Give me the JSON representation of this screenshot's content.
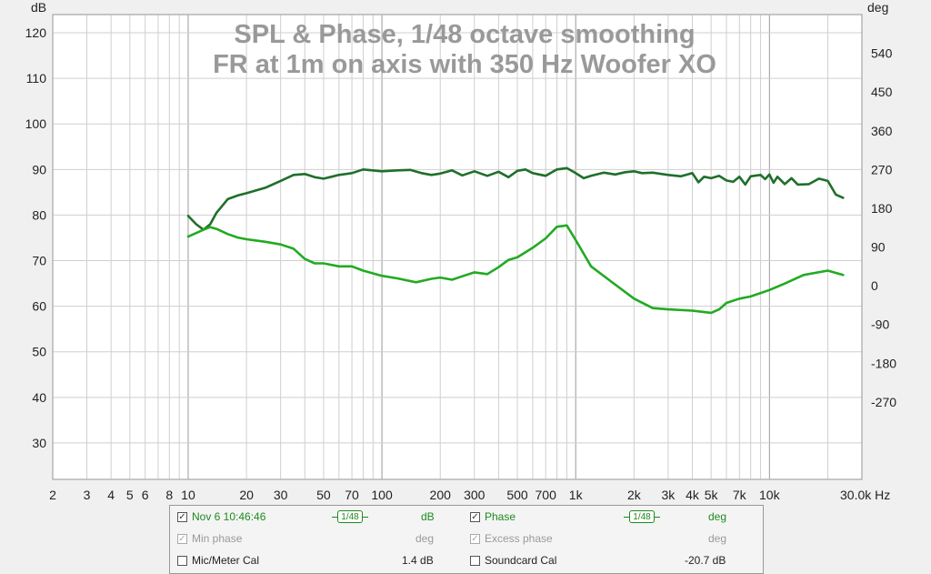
{
  "chart_data": {
    "type": "line",
    "title": "SPL & Phase, 1/48 octave smoothing",
    "subtitle": "FR at 1m on axis with 350 Hz Woofer XO",
    "xscale": "log",
    "xlim": [
      2,
      30000
    ],
    "ylim": [
      22,
      124
    ],
    "y2lim": [
      -450,
      630
    ],
    "ylabel": "dB",
    "y2label": "deg",
    "xunit": "Hz",
    "grid": true,
    "x_ticks": [
      {
        "v": 2,
        "label": "2"
      },
      {
        "v": 3,
        "label": "3"
      },
      {
        "v": 4,
        "label": "4"
      },
      {
        "v": 5,
        "label": "5"
      },
      {
        "v": 6,
        "label": "6"
      },
      {
        "v": 8,
        "label": "8"
      },
      {
        "v": 10,
        "label": "10"
      },
      {
        "v": 20,
        "label": "20"
      },
      {
        "v": 30,
        "label": "30"
      },
      {
        "v": 50,
        "label": "50"
      },
      {
        "v": 70,
        "label": "70"
      },
      {
        "v": 100,
        "label": "100"
      },
      {
        "v": 200,
        "label": "200"
      },
      {
        "v": 300,
        "label": "300"
      },
      {
        "v": 500,
        "label": "500"
      },
      {
        "v": 700,
        "label": "700"
      },
      {
        "v": 1000,
        "label": "1k"
      },
      {
        "v": 2000,
        "label": "2k"
      },
      {
        "v": 3000,
        "label": "3k"
      },
      {
        "v": 4000,
        "label": "4k"
      },
      {
        "v": 5000,
        "label": "5k"
      },
      {
        "v": 7000,
        "label": "7k"
      },
      {
        "v": 10000,
        "label": "10k"
      },
      {
        "v": 30000,
        "label": "30.0k Hz"
      }
    ],
    "y_ticks": [
      120,
      110,
      100,
      90,
      80,
      70,
      60,
      50,
      40,
      30
    ],
    "y2_ticks": [
      540,
      450,
      360,
      270,
      180,
      90,
      0,
      -90,
      -180,
      -270
    ],
    "series": [
      {
        "name": "SPL",
        "axis": "left",
        "color": "#1f6f2a",
        "x": [
          10,
          11,
          12,
          13,
          14,
          16,
          18,
          20,
          25,
          30,
          35,
          40,
          45,
          50,
          55,
          60,
          70,
          80,
          100,
          120,
          140,
          160,
          180,
          200,
          230,
          260,
          300,
          350,
          400,
          450,
          500,
          550,
          600,
          700,
          800,
          900,
          1000,
          1100,
          1200,
          1400,
          1600,
          1800,
          2000,
          2200,
          2500,
          3000,
          3500,
          4000,
          4300,
          4600,
          5000,
          5500,
          6000,
          6500,
          7000,
          7500,
          8000,
          9000,
          9500,
          10000,
          10500,
          11000,
          12000,
          13000,
          14000,
          16000,
          18000,
          20000,
          22000,
          24000
        ],
        "y": [
          79.8,
          78,
          76.8,
          78,
          80.5,
          83.5,
          84.3,
          84.8,
          86,
          87.5,
          88.8,
          89,
          88.3,
          88,
          88.4,
          88.8,
          89.2,
          90,
          89.6,
          89.8,
          89.9,
          89.2,
          88.8,
          89.1,
          89.8,
          88.7,
          89.6,
          88.6,
          89.5,
          88.3,
          89.7,
          90,
          89.2,
          88.6,
          90,
          90.3,
          89.2,
          88.1,
          88.6,
          89.3,
          88.9,
          89.4,
          89.6,
          89.2,
          89.3,
          88.8,
          88.5,
          89.2,
          87.2,
          88.4,
          88.1,
          88.6,
          87.6,
          87.3,
          88.4,
          86.7,
          88.5,
          88.8,
          87.9,
          88.9,
          87.1,
          88.4,
          86.8,
          88.1,
          86.7,
          86.8,
          88,
          87.5,
          84.5,
          83.8
        ]
      },
      {
        "name": "Phase",
        "axis": "right",
        "color": "#22aa22",
        "x": [
          10,
          12,
          13,
          14,
          16,
          18,
          20,
          25,
          30,
          35,
          40,
          45,
          50,
          60,
          70,
          80,
          100,
          120,
          150,
          180,
          200,
          230,
          260,
          300,
          350,
          400,
          450,
          500,
          600,
          700,
          800,
          900,
          1000,
          1200,
          1500,
          2000,
          2500,
          3000,
          4000,
          5000,
          5500,
          6000,
          7000,
          8000,
          10000,
          12000,
          15000,
          20000,
          24000
        ],
        "y": [
          114,
          130,
          136,
          132,
          120,
          112,
          108,
          102,
          96,
          86,
          62,
          52,
          52,
          45,
          45,
          35,
          23,
          17,
          8,
          16,
          19,
          14,
          22,
          31,
          27,
          43,
          60,
          66,
          88,
          110,
          137,
          140,
          106,
          45,
          12,
          -30,
          -52,
          -55,
          -58,
          -63,
          -55,
          -40,
          -30,
          -25,
          -10,
          5,
          25,
          35,
          25
        ]
      }
    ]
  },
  "legend": {
    "row1": {
      "measurement": "Nov 6 10:46:46",
      "smoothing_a": "1/48",
      "unit_a": "dB",
      "phase": "Phase",
      "smoothing_b": "1/48",
      "unit_b": "deg"
    },
    "row2": {
      "min_phase": "Min phase",
      "unit_a": "deg",
      "excess_phase": "Excess phase",
      "unit_b": "deg"
    },
    "row3": {
      "mic_cal": "Mic/Meter Cal",
      "mic_value": "1.4 dB",
      "soundcard_cal": "Soundcard Cal",
      "soundcard_value": "-20.7 dB"
    },
    "check_mark": "✓"
  }
}
